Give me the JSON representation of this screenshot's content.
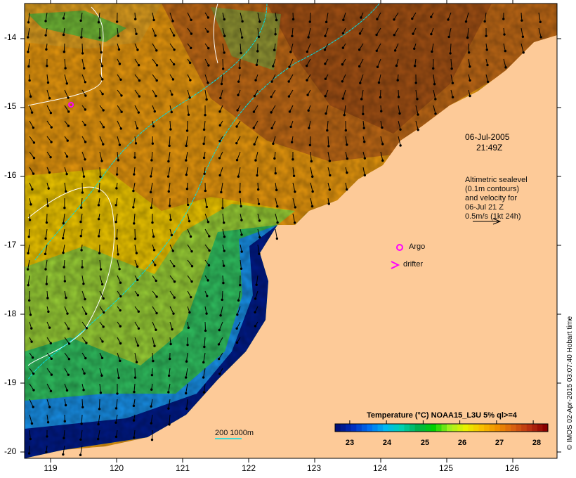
{
  "map": {
    "lon_ticks": [
      "119",
      "120",
      "121",
      "122",
      "123",
      "124",
      "125",
      "126"
    ],
    "lat_ticks": [
      "-14",
      "-15",
      "-16",
      "-17",
      "-18",
      "-19",
      "-20"
    ],
    "date": "06-Jul-2005",
    "time": "21:49Z",
    "altimetry_note": [
      "Altimetric sealevel",
      "(0.1m contours)",
      "and velocity for",
      "06-Jul 21 Z",
      "0.5m/s (1kt 24h)"
    ],
    "argo_label": "Argo",
    "drifter_label": "drifter",
    "depth_contours_label": "200  1000m",
    "credit": "© IMOS 02-Apr-2015 03:07:40 Hobart time"
  },
  "colorbar": {
    "title": "Temperature (°C) NOAA15_L3U 5% ql>=4",
    "ticks": [
      "23",
      "24",
      "25",
      "26",
      "27",
      "28"
    ],
    "range": [
      22.6,
      28.4
    ],
    "colors": [
      "#00107a",
      "#0030c0",
      "#0070f0",
      "#00b8f0",
      "#00d0b0",
      "#00b050",
      "#00d000",
      "#a0f020",
      "#e8f000",
      "#f8c000",
      "#f09000",
      "#d86010",
      "#b83010",
      "#8a0000"
    ]
  },
  "colors": {
    "land": "#fdca98",
    "arrow": "#000000",
    "contour": "#ffffff",
    "isobath": "#00e0e8",
    "marker": "#ff00ff"
  }
}
